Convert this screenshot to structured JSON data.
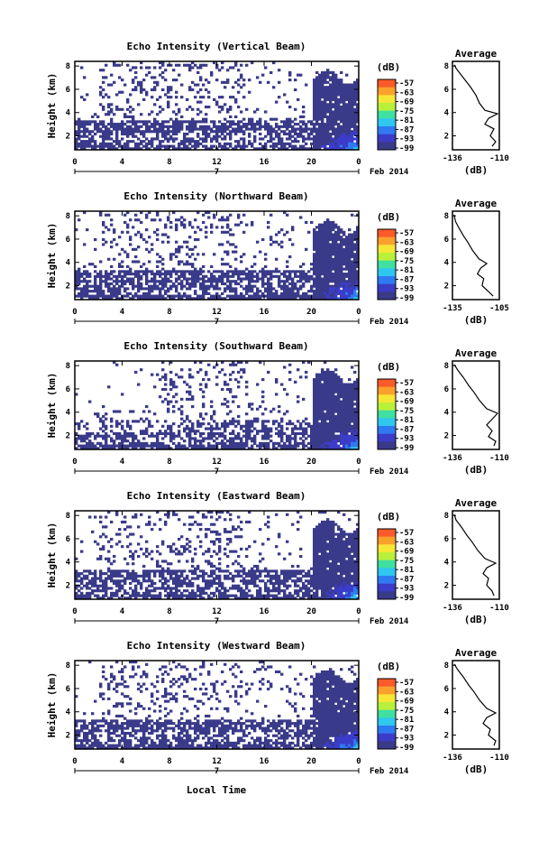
{
  "footer_label": "Local Time",
  "chart_data": {
    "type": "heatmap",
    "colorbar": {
      "unit": "(dB)",
      "ticks": [
        "-57",
        "-63",
        "-69",
        "-75",
        "-81",
        "-87",
        "-93",
        "-99"
      ],
      "colors": [
        "#fb5a2a",
        "#fca02c",
        "#f6e637",
        "#b8f03a",
        "#3fe0a0",
        "#2fc6f0",
        "#2f7af2",
        "#3b3cc8",
        "#3a3a8a"
      ]
    },
    "panels": [
      {
        "title": "Echo Intensity (Vertical Beam)",
        "ylabel": "Height (km)",
        "yticks": [
          "2",
          "4",
          "6",
          "8"
        ],
        "xticks": [
          "0",
          "4",
          "8",
          "12",
          "16",
          "20",
          "0"
        ],
        "date_day": "7",
        "date_label": "Feb 2014",
        "average": {
          "title": "Average",
          "xlabel": "(dB)",
          "xticks": [
            "-136",
            "-110"
          ],
          "yticks": [
            "2",
            "4",
            "6",
            "8"
          ],
          "profile": [
            [
              -114,
              1.1
            ],
            [
              -112,
              1.5
            ],
            [
              -115,
              2.0
            ],
            [
              -113,
              2.6
            ],
            [
              -118,
              3.0
            ],
            [
              -116,
              3.5
            ],
            [
              -111,
              3.9
            ],
            [
              -118,
              4.2
            ],
            [
              -121,
              4.8
            ],
            [
              -123,
              5.5
            ],
            [
              -126,
              6.2
            ],
            [
              -129,
              6.8
            ],
            [
              -132,
              7.4
            ],
            [
              -134,
              7.8
            ],
            [
              -135,
              8.1
            ]
          ]
        }
      },
      {
        "title": "Echo Intensity (Northward Beam)",
        "ylabel": "Height (km)",
        "yticks": [
          "2",
          "4",
          "6",
          "8"
        ],
        "xticks": [
          "0",
          "4",
          "8",
          "12",
          "16",
          "20",
          "0"
        ],
        "date_day": "7",
        "date_label": "Feb 2014",
        "average": {
          "title": "Average",
          "xlabel": "(dB)",
          "xticks": [
            "-135",
            "-105"
          ],
          "yticks": [
            "2",
            "4",
            "6",
            "8"
          ],
          "profile": [
            [
              -109,
              1.1
            ],
            [
              -112,
              1.5
            ],
            [
              -116,
              2.0
            ],
            [
              -115,
              2.6
            ],
            [
              -119,
              3.0
            ],
            [
              -117,
              3.5
            ],
            [
              -113,
              3.9
            ],
            [
              -118,
              4.3
            ],
            [
              -122,
              5.0
            ],
            [
              -125,
              5.7
            ],
            [
              -128,
              6.3
            ],
            [
              -131,
              7.0
            ],
            [
              -133,
              7.5
            ],
            [
              -134,
              8.1
            ]
          ]
        }
      },
      {
        "title": "Echo Intensity (Southward Beam)",
        "ylabel": "Height (km)",
        "yticks": [
          "2",
          "4",
          "6",
          "8"
        ],
        "xticks": [
          "0",
          "4",
          "8",
          "12",
          "16",
          "20",
          "0"
        ],
        "date_day": "7",
        "date_label": "Feb 2014",
        "average": {
          "title": "Average",
          "xlabel": "(dB)",
          "xticks": [
            "-136",
            "-110"
          ],
          "yticks": [
            "2",
            "4",
            "6",
            "8"
          ],
          "profile": [
            [
              -113,
              1.1
            ],
            [
              -112,
              1.5
            ],
            [
              -116,
              1.9
            ],
            [
              -114,
              2.4
            ],
            [
              -117,
              2.9
            ],
            [
              -114,
              3.4
            ],
            [
              -111,
              3.9
            ],
            [
              -117,
              4.3
            ],
            [
              -121,
              5.0
            ],
            [
              -124,
              5.7
            ],
            [
              -127,
              6.3
            ],
            [
              -130,
              7.0
            ],
            [
              -133,
              7.6
            ],
            [
              -135,
              8.1
            ]
          ]
        }
      },
      {
        "title": "Echo Intensity (Eastward Beam)",
        "ylabel": "Height (km)",
        "yticks": [
          "2",
          "4",
          "6",
          "8"
        ],
        "xticks": [
          "0",
          "4",
          "8",
          "12",
          "16",
          "20",
          "0"
        ],
        "date_day": "7",
        "date_label": "Feb 2014",
        "average": {
          "title": "Average",
          "xlabel": "(dB)",
          "xticks": [
            "-136",
            "-110"
          ],
          "yticks": [
            "2",
            "4",
            "6",
            "8"
          ],
          "profile": [
            [
              -113,
              1.1
            ],
            [
              -114,
              1.5
            ],
            [
              -117,
              2.0
            ],
            [
              -116,
              2.6
            ],
            [
              -119,
              3.0
            ],
            [
              -117,
              3.5
            ],
            [
              -112,
              3.9
            ],
            [
              -118,
              4.3
            ],
            [
              -122,
              5.0
            ],
            [
              -125,
              5.7
            ],
            [
              -128,
              6.3
            ],
            [
              -131,
              7.0
            ],
            [
              -134,
              7.6
            ],
            [
              -135,
              8.1
            ]
          ]
        }
      },
      {
        "title": "Echo Intensity (Westward Beam)",
        "ylabel": "Height (km)",
        "yticks": [
          "2",
          "4",
          "6",
          "8"
        ],
        "xticks": [
          "0",
          "4",
          "8",
          "12",
          "16",
          "20",
          "0"
        ],
        "date_day": "7",
        "date_label": "Feb 2014",
        "average": {
          "title": "Average",
          "xlabel": "(dB)",
          "xticks": [
            "-136",
            "-110"
          ],
          "yticks": [
            "2",
            "4",
            "6",
            "8"
          ],
          "profile": [
            [
              -113,
              1.1
            ],
            [
              -112,
              1.5
            ],
            [
              -116,
              2.0
            ],
            [
              -115,
              2.5
            ],
            [
              -119,
              3.0
            ],
            [
              -117,
              3.5
            ],
            [
              -112,
              3.9
            ],
            [
              -117,
              4.3
            ],
            [
              -121,
              5.0
            ],
            [
              -124,
              5.7
            ],
            [
              -127,
              6.3
            ],
            [
              -130,
              7.0
            ],
            [
              -133,
              7.6
            ],
            [
              -135,
              8.1
            ]
          ]
        }
      }
    ]
  }
}
